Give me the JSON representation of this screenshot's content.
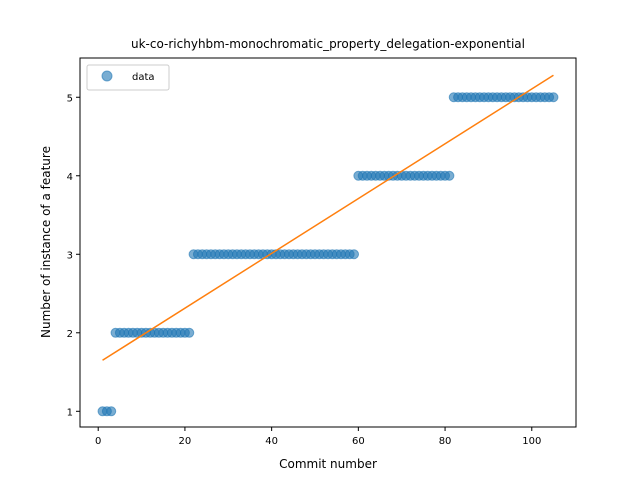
{
  "chart_data": {
    "type": "scatter",
    "title": "uk-co-richyhbm-monochromatic_property_delegation-exponential",
    "xlabel": "Commit number",
    "ylabel": "Number of instance of a feature",
    "xlim": [
      -4.2,
      110.2
    ],
    "ylim": [
      0.8,
      5.5
    ],
    "xticks": [
      0,
      20,
      40,
      60,
      80,
      100
    ],
    "yticks": [
      1,
      2,
      3,
      4,
      5
    ],
    "grid": false,
    "legend": {
      "entries": [
        "data"
      ],
      "placement": "top-left"
    },
    "series": [
      {
        "name": "data",
        "kind": "scatter",
        "color": "#1f77b4",
        "groups": [
          {
            "x_start": 1,
            "x_end": 3,
            "y": 1
          },
          {
            "x_start": 4,
            "x_end": 21,
            "y": 2
          },
          {
            "x_start": 22,
            "x_end": 59,
            "y": 3
          },
          {
            "x_start": 60,
            "x_end": 81,
            "y": 4
          },
          {
            "x_start": 82,
            "x_end": 105,
            "y": 5
          }
        ]
      },
      {
        "kind": "line",
        "color": "#ff7f0e",
        "x": [
          1,
          105
        ],
        "y": [
          1.65,
          5.28
        ]
      }
    ]
  }
}
